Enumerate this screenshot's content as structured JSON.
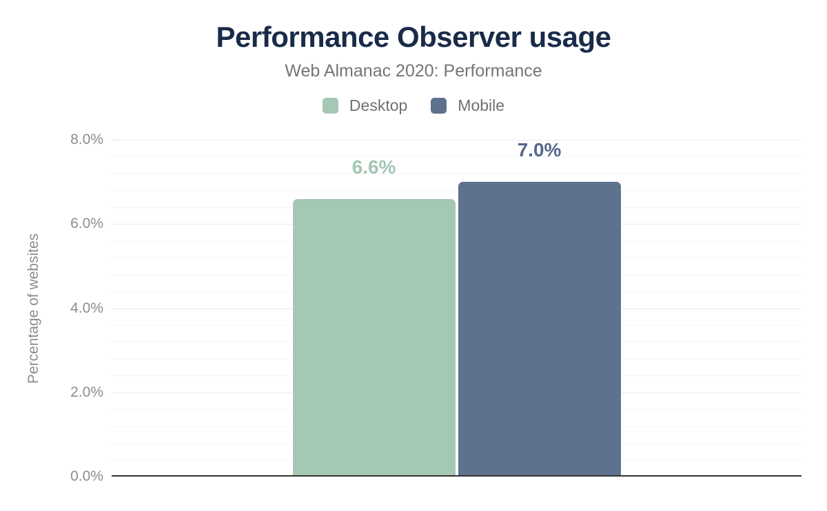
{
  "chart_data": {
    "type": "bar",
    "title": "Performance Observer usage",
    "subtitle": "Web Almanac 2020: Performance",
    "ylabel": "Percentage of websites",
    "xlabel": "",
    "ylim": [
      0,
      8
    ],
    "legend_position": "top",
    "legend_entries": [
      "Desktop",
      "Mobile"
    ],
    "series": [
      {
        "name": "Desktop",
        "value": 6.6,
        "label": "6.6%",
        "color": "#a5c8b5",
        "label_color": "#a2c6b3"
      },
      {
        "name": "Mobile",
        "value": 7.0,
        "label": "7.0%",
        "color": "#5e718d",
        "label_color": "#55688c"
      }
    ],
    "yticks": [
      {
        "value": 0,
        "label": "0.0%"
      },
      {
        "value": 2,
        "label": "2.0%"
      },
      {
        "value": 4,
        "label": "4.0%"
      },
      {
        "value": 6,
        "label": "6.0%"
      },
      {
        "value": 8,
        "label": "8.0%"
      }
    ],
    "grid": {
      "show": true,
      "minor_step": 0.4,
      "major_step": 2
    },
    "colors": {
      "title_text": "#1a2b49",
      "subtitle_text": "#757575",
      "legend_text": "#707070",
      "tick_text": "#8c8c8c",
      "axis_line": "#333333",
      "major_gridline": "#eaeaea",
      "minor_gridline": "#f5f5f5",
      "background": "#ffffff"
    }
  }
}
